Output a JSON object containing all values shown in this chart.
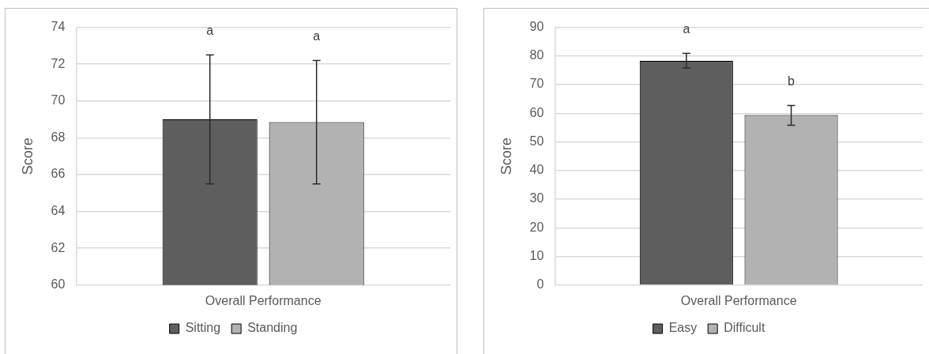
{
  "chart_data": [
    {
      "type": "bar",
      "ylabel": "Score",
      "categories": [
        "Overall Performance"
      ],
      "ylim": [
        60,
        74
      ],
      "yticks": [
        60,
        62,
        64,
        66,
        68,
        70,
        72,
        74
      ],
      "grid": "y",
      "legend": "bottom",
      "series": [
        {
          "name": "Sitting",
          "color": "#5e5e5e",
          "values": [
            69.0
          ],
          "errors": [
            [
              65.5,
              72.5
            ]
          ]
        },
        {
          "name": "Standing",
          "color": "#b2b2b2",
          "values": [
            68.85
          ],
          "errors": [
            [
              65.5,
              72.2
            ]
          ]
        }
      ],
      "annotations": [
        "a",
        "a"
      ]
    },
    {
      "type": "bar",
      "ylabel": "Score",
      "categories": [
        "Overall Performance"
      ],
      "ylim": [
        0,
        90
      ],
      "yticks": [
        0,
        10,
        20,
        30,
        40,
        50,
        60,
        70,
        80,
        90
      ],
      "grid": "y",
      "legend": "bottom",
      "series": [
        {
          "name": "Easy",
          "color": "#5e5e5e",
          "values": [
            78.3
          ],
          "errors": [
            [
              75.8,
              80.9
            ]
          ]
        },
        {
          "name": "Difficult",
          "color": "#b2b2b2",
          "values": [
            59.4
          ],
          "errors": [
            [
              55.8,
              62.7
            ]
          ]
        }
      ],
      "annotations": [
        "a",
        "b"
      ]
    }
  ]
}
